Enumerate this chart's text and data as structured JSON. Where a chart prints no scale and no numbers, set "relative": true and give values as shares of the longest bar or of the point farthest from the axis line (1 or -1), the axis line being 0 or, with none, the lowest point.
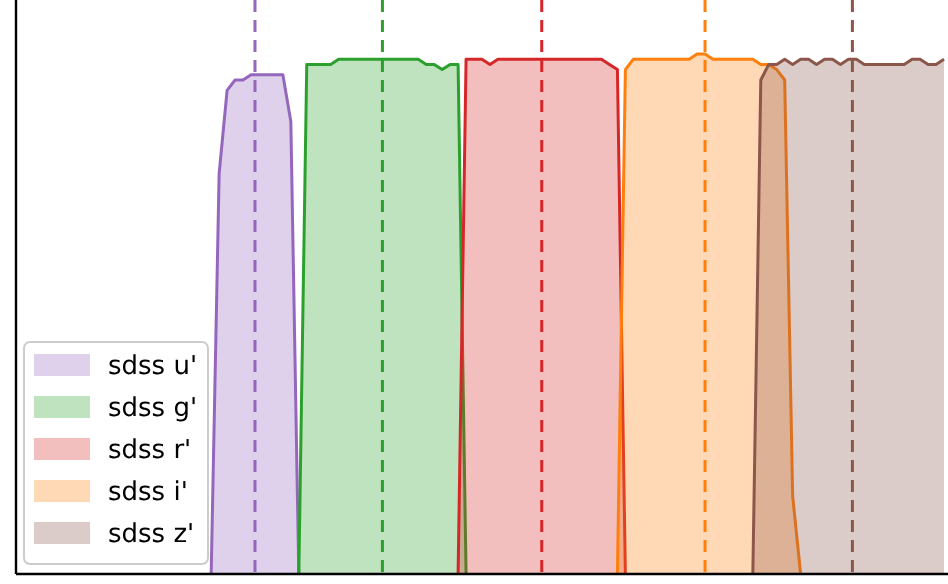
{
  "chart_data": {
    "type": "area",
    "relative": true,
    "legend": "bottom left",
    "line_style": "solid",
    "categories": [
      null,
      null,
      null,
      null,
      null,
      null,
      null,
      null,
      null,
      null,
      null,
      null,
      null,
      null,
      null,
      null,
      null,
      null,
      null,
      null,
      null,
      null,
      null,
      null,
      null,
      null,
      null,
      null,
      null,
      null,
      null,
      null,
      null,
      null,
      null,
      null,
      null,
      null,
      null,
      null,
      null,
      null,
      null,
      null,
      null,
      null,
      null,
      null,
      null,
      null,
      null,
      null,
      null,
      null,
      null,
      null,
      null,
      null,
      null,
      null,
      null,
      null,
      null,
      null,
      null,
      null,
      null,
      null,
      null,
      null,
      null,
      null,
      null,
      null,
      null,
      null,
      null,
      null,
      null,
      null,
      null,
      null,
      null,
      null,
      null,
      null,
      null,
      null,
      null,
      null,
      null,
      null,
      null,
      null,
      null,
      null,
      null,
      null,
      null,
      null,
      null,
      null,
      null,
      null,
      null,
      null,
      null,
      null,
      null,
      null,
      null,
      null,
      null,
      null,
      null,
      null,
      null
    ],
    "series": [
      {
        "name": "sdss u'",
        "color": "#9467bd",
        "values": [
          null,
          null,
          null,
          null,
          null,
          null,
          null,
          null,
          null,
          null,
          null,
          null,
          null,
          null,
          null,
          null,
          null,
          null,
          null,
          null,
          null,
          null,
          null,
          null,
          0,
          0.77,
          0.93,
          0.95,
          0.95,
          0.96,
          0.96,
          0.96,
          0.96,
          0.96,
          0.87,
          0,
          null,
          null,
          null,
          null,
          null,
          null,
          null,
          null,
          null,
          null,
          null,
          null,
          null,
          null,
          null,
          null,
          null,
          null,
          null,
          null,
          null,
          null,
          null,
          null,
          null,
          null,
          null,
          null,
          null,
          null,
          null,
          null,
          null,
          null,
          null,
          null,
          null,
          null,
          null,
          null,
          null,
          null,
          null,
          null,
          null,
          null,
          null,
          null,
          null,
          null,
          null,
          null,
          null,
          null,
          null,
          null,
          null,
          null,
          null,
          null,
          null,
          null,
          null,
          null,
          null,
          null,
          null,
          null,
          null,
          null,
          null,
          null,
          null,
          null,
          null,
          null,
          null,
          null,
          null,
          null,
          null
        ]
      },
      {
        "name": "sdss g'",
        "color": "#2ca02c",
        "values": [
          null,
          null,
          null,
          null,
          null,
          null,
          null,
          null,
          null,
          null,
          null,
          null,
          null,
          null,
          null,
          null,
          null,
          null,
          null,
          null,
          null,
          null,
          null,
          null,
          null,
          null,
          null,
          null,
          null,
          null,
          null,
          null,
          null,
          null,
          null,
          0,
          0.98,
          0.98,
          0.98,
          0.98,
          0.99,
          0.99,
          0.99,
          0.99,
          0.99,
          0.99,
          0.99,
          0.99,
          0.99,
          0.99,
          0.99,
          0.98,
          0.98,
          0.97,
          0.98,
          0.98,
          0,
          null,
          null,
          null,
          null,
          null,
          null,
          null,
          null,
          null,
          null,
          null,
          null,
          null,
          null,
          null,
          null,
          null,
          null,
          null,
          null,
          null,
          null,
          null,
          null,
          null,
          null,
          null,
          null,
          null,
          null,
          null,
          null,
          null,
          null,
          null,
          null,
          null,
          null,
          null,
          null,
          null,
          null,
          null,
          null,
          null,
          null,
          null,
          null,
          null,
          null,
          null,
          null,
          null,
          null,
          null,
          null,
          null,
          null,
          null,
          null
        ]
      },
      {
        "name": "sdss r'",
        "color": "#d62728",
        "values": [
          null,
          null,
          null,
          null,
          null,
          null,
          null,
          null,
          null,
          null,
          null,
          null,
          null,
          null,
          null,
          null,
          null,
          null,
          null,
          null,
          null,
          null,
          null,
          null,
          null,
          null,
          null,
          null,
          null,
          null,
          null,
          null,
          null,
          null,
          null,
          null,
          null,
          null,
          null,
          null,
          null,
          null,
          null,
          null,
          null,
          null,
          null,
          null,
          null,
          null,
          null,
          null,
          null,
          null,
          null,
          0,
          0.99,
          0.99,
          0.99,
          0.98,
          0.99,
          0.99,
          0.99,
          0.99,
          0.99,
          0.99,
          0.99,
          0.99,
          0.99,
          0.99,
          0.99,
          0.99,
          0.99,
          0.99,
          0.98,
          0.97,
          0,
          null,
          null,
          null,
          null,
          null,
          null,
          null,
          null,
          null,
          null,
          null,
          null,
          null,
          null,
          null,
          null,
          null,
          null,
          null,
          null,
          null,
          null,
          null,
          null,
          null,
          null,
          null,
          null,
          null,
          null,
          null,
          null,
          null,
          null,
          null,
          null,
          null,
          null,
          null,
          null
        ]
      },
      {
        "name": "sdss i'",
        "color": "#ff7f0e",
        "values": [
          null,
          null,
          null,
          null,
          null,
          null,
          null,
          null,
          null,
          null,
          null,
          null,
          null,
          null,
          null,
          null,
          null,
          null,
          null,
          null,
          null,
          null,
          null,
          null,
          null,
          null,
          null,
          null,
          null,
          null,
          null,
          null,
          null,
          null,
          null,
          null,
          null,
          null,
          null,
          null,
          null,
          null,
          null,
          null,
          null,
          null,
          null,
          null,
          null,
          null,
          null,
          null,
          null,
          null,
          null,
          null,
          null,
          null,
          null,
          null,
          null,
          null,
          null,
          null,
          null,
          null,
          null,
          null,
          null,
          null,
          null,
          null,
          null,
          null,
          null,
          0,
          0.97,
          0.99,
          0.99,
          0.99,
          0.99,
          0.99,
          0.99,
          0.99,
          0.99,
          1,
          1,
          0.99,
          0.99,
          0.99,
          0.99,
          0.99,
          0.99,
          0.98,
          0.98,
          0.97,
          0.95,
          0.15,
          0,
          null,
          null,
          null,
          null,
          null,
          null,
          null,
          null,
          null,
          null,
          null,
          null,
          null,
          null,
          null,
          null,
          null,
          null
        ]
      },
      {
        "name": "sdss z'",
        "color": "#8c564b",
        "values": [
          null,
          null,
          null,
          null,
          null,
          null,
          null,
          null,
          null,
          null,
          null,
          null,
          null,
          null,
          null,
          null,
          null,
          null,
          null,
          null,
          null,
          null,
          null,
          null,
          null,
          null,
          null,
          null,
          null,
          null,
          null,
          null,
          null,
          null,
          null,
          null,
          null,
          null,
          null,
          null,
          null,
          null,
          null,
          null,
          null,
          null,
          null,
          null,
          null,
          null,
          null,
          null,
          null,
          null,
          null,
          null,
          null,
          null,
          null,
          null,
          null,
          null,
          null,
          null,
          null,
          null,
          null,
          null,
          null,
          null,
          null,
          null,
          null,
          null,
          null,
          null,
          null,
          null,
          null,
          null,
          null,
          null,
          null,
          null,
          null,
          null,
          null,
          null,
          null,
          null,
          null,
          null,
          0,
          0.95,
          0.98,
          0.98,
          0.99,
          0.98,
          0.99,
          0.99,
          0.98,
          0.99,
          0.99,
          0.98,
          0.99,
          0.99,
          0.98,
          0.98,
          0.98,
          0.98,
          0.98,
          0.98,
          0.99,
          0.99,
          0.98,
          0.98,
          0.99
        ]
      }
    ]
  }
}
